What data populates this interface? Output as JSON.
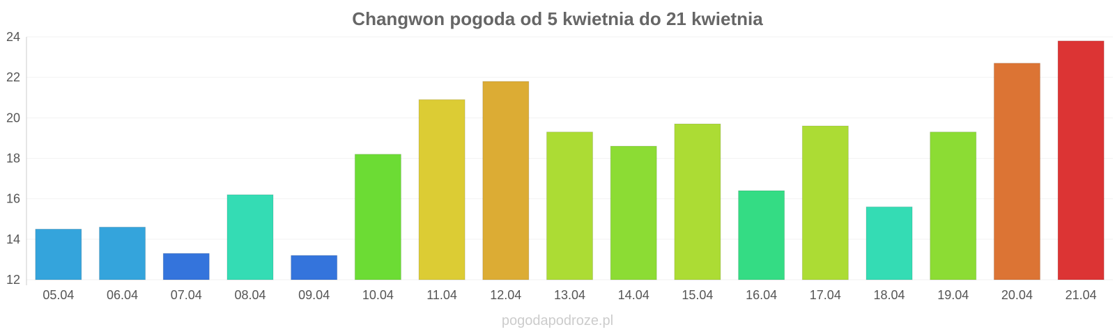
{
  "chart_data": {
    "type": "bar",
    "title": "Changwon pogoda od 5 kwietnia do 21 kwietnia",
    "xlabel": "",
    "ylabel": "",
    "ylim": [
      12,
      24
    ],
    "yticks": [
      12,
      14,
      16,
      18,
      20,
      22,
      24
    ],
    "grid": true,
    "categories": [
      "05.04",
      "06.04",
      "07.04",
      "08.04",
      "09.04",
      "10.04",
      "11.04",
      "12.04",
      "13.04",
      "14.04",
      "15.04",
      "16.04",
      "17.04",
      "18.04",
      "19.04",
      "20.04",
      "21.04"
    ],
    "values": [
      14.5,
      14.6,
      13.3,
      16.2,
      13.2,
      18.2,
      20.9,
      21.8,
      19.3,
      18.6,
      19.7,
      16.4,
      19.6,
      15.6,
      19.3,
      22.7,
      23.8
    ],
    "colors": [
      "#34a4dc",
      "#34a4dc",
      "#3474dc",
      "#34dcb4",
      "#3474dc",
      "#6cdc34",
      "#dccc34",
      "#dcac34",
      "#acdc34",
      "#8cdc34",
      "#acdc34",
      "#34dc84",
      "#acdc34",
      "#34dcb4",
      "#8cdc34",
      "#dc7434",
      "#dc3434"
    ]
  },
  "watermark": "pogodapodroze.pl"
}
